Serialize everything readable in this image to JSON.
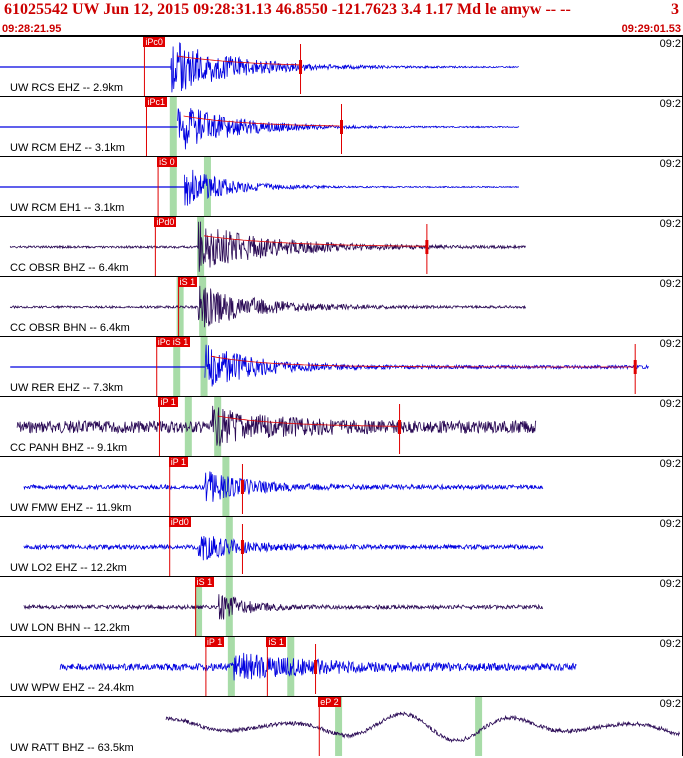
{
  "header": {
    "title": "61025542 UW Jun 12, 2015 09:28:31.13   46.8550 -121.7623  3.4 1.17 Md le amyw -- --",
    "title_right": "3",
    "start_time": "09:28:21.95",
    "end_time": "09:29:01.53"
  },
  "colors": {
    "header_text": "#cc0000",
    "trace_blue": "#0000e0",
    "trace_dark": "#2a0a55",
    "pick_red": "#e00000",
    "window_green": "#a8dca8"
  },
  "panels": [
    {
      "station": "UW RCS EHZ -- 2.9km",
      "time_label": "09:2",
      "pick": "iPc0",
      "color": "blue",
      "baseline": true,
      "start": 0.0,
      "end": 0.76,
      "onset": 0.25,
      "decay": 0.09,
      "amp": 1.0,
      "noise": 0.02,
      "coda_line": true,
      "red_mark": 0.44,
      "seed": 1,
      "picks": [
        {
          "label": "iPc0",
          "pos": 0.21
        }
      ],
      "greens": []
    },
    {
      "station": "UW RCM EHZ -- 3.1km",
      "time_label": "09:2",
      "pick": "iPc1",
      "color": "blue",
      "baseline": true,
      "start": 0.0,
      "end": 0.76,
      "onset": 0.26,
      "decay": 0.08,
      "amp": 0.9,
      "noise": 0.02,
      "coda_line": true,
      "red_mark": 0.5,
      "seed": 2,
      "picks": [
        {
          "label": "iPc1",
          "pos": 0.213
        }
      ],
      "greens": [
        0.253
      ]
    },
    {
      "station": "UW RCM EH1 -- 3.1km",
      "time_label": "09:2",
      "pick": "iS 0",
      "color": "blue",
      "baseline": true,
      "start": 0.0,
      "end": 0.76,
      "onset": 0.27,
      "decay": 0.06,
      "amp": 0.75,
      "noise": 0.02,
      "coda_line": false,
      "red_mark": null,
      "seed": 3,
      "picks": [
        {
          "label": "iS 0",
          "pos": 0.23
        }
      ],
      "greens": [
        0.253,
        0.303
      ]
    },
    {
      "station": "CC OBSR BHZ -- 6.4km",
      "time_label": "09:2",
      "pick": "iPd0",
      "color": "dark",
      "baseline": false,
      "start": 0.015,
      "end": 0.77,
      "onset": 0.29,
      "decay": 0.1,
      "amp": 0.9,
      "noise": 0.04,
      "coda_line": true,
      "red_mark": 0.625,
      "seed": 4,
      "picks": [
        {
          "label": "iPd0",
          "pos": 0.226
        }
      ],
      "greens": [
        0.293
      ]
    },
    {
      "station": "CC OBSR BHN -- 6.4km",
      "time_label": "09:2",
      "pick": "iS 1",
      "color": "dark",
      "baseline": false,
      "start": 0.015,
      "end": 0.77,
      "onset": 0.29,
      "decay": 0.08,
      "amp": 0.8,
      "noise": 0.04,
      "coda_line": false,
      "red_mark": null,
      "seed": 5,
      "picks": [
        {
          "label": "iS 1",
          "pos": 0.26
        }
      ],
      "greens": [
        0.263,
        0.296
      ]
    },
    {
      "station": "UW RER EHZ -- 7.3km",
      "time_label": "09:2",
      "pick": "iPc iS 1",
      "color": "blue",
      "baseline": true,
      "start": 0.015,
      "end": 0.95,
      "onset": 0.3,
      "decay": 0.07,
      "amp": 0.8,
      "noise": 0.06,
      "coda_line": true,
      "red_mark": 0.93,
      "seed": 6,
      "picks": [
        {
          "label": "iPc iS 1",
          "pos": 0.228
        }
      ],
      "greens": [
        0.258,
        0.298
      ]
    },
    {
      "station": "CC PANH BHZ -- 9.1km",
      "time_label": "09:2",
      "pick": "iP 1",
      "color": "dark",
      "baseline": false,
      "start": 0.025,
      "end": 0.785,
      "onset": 0.31,
      "decay": 0.08,
      "amp": 0.55,
      "noise": 0.22,
      "coda_line": true,
      "red_mark": 0.585,
      "seed": 7,
      "picks": [
        {
          "label": "iP 1",
          "pos": 0.232
        }
      ],
      "greens": [
        0.275,
        0.318
      ]
    },
    {
      "station": "UW FMW EHZ -- 11.9km",
      "time_label": "09:2",
      "pick": "iP 1",
      "color": "blue",
      "baseline": false,
      "start": 0.035,
      "end": 0.795,
      "onset": 0.3,
      "decay": 0.06,
      "amp": 0.55,
      "noise": 0.08,
      "coda_line": false,
      "red_mark": 0.355,
      "seed": 8,
      "picks": [
        {
          "label": "iP 1",
          "pos": 0.247
        }
      ],
      "greens": [
        0.33
      ]
    },
    {
      "station": "UW LO2 EHZ -- 12.2km",
      "time_label": "09:2",
      "pick": "iPd0",
      "color": "blue",
      "baseline": false,
      "start": 0.035,
      "end": 0.795,
      "onset": 0.29,
      "decay": 0.06,
      "amp": 0.45,
      "noise": 0.08,
      "coda_line": false,
      "red_mark": 0.355,
      "seed": 9,
      "picks": [
        {
          "label": "iPd0",
          "pos": 0.247
        }
      ],
      "greens": [
        0.335
      ]
    },
    {
      "station": "UW LON BHN -- 12.2km",
      "time_label": "09:2",
      "pick": "iS 1",
      "color": "dark",
      "baseline": false,
      "start": 0.035,
      "end": 0.795,
      "onset": 0.32,
      "decay": 0.04,
      "amp": 0.5,
      "noise": 0.07,
      "coda_line": false,
      "red_mark": null,
      "seed": 10,
      "picks": [
        {
          "label": "iS 1",
          "pos": 0.285
        }
      ],
      "greens": [
        0.29,
        0.335
      ]
    },
    {
      "station": "UW WPW EHZ -- 24.4km",
      "time_label": "09:2",
      "pick": "iP 1",
      "color": "blue",
      "baseline": false,
      "start": 0.088,
      "end": 0.845,
      "onset": 0.34,
      "decay": 0.12,
      "amp": 0.45,
      "noise": 0.12,
      "coda_line": false,
      "red_mark": 0.462,
      "seed": 11,
      "picks": [
        {
          "label": "iP 1",
          "pos": 0.3
        },
        {
          "label": "iS 1",
          "pos": 0.39
        }
      ],
      "greens": [
        0.338,
        0.425
      ]
    },
    {
      "station": "UW RATT BHZ -- 63.5km",
      "time_label": "09:2",
      "pick": "eP 2",
      "color": "dark",
      "baseline": false,
      "start": 0.243,
      "end": 0.995,
      "onset": 0.5,
      "decay": 0.15,
      "amp": 0.1,
      "noise": 0.05,
      "coda_line": false,
      "red_mark": null,
      "seed": 12,
      "picks": [
        {
          "label": "eP 2",
          "pos": 0.466
        }
      ],
      "greens": [
        0.495,
        0.7
      ]
    }
  ]
}
